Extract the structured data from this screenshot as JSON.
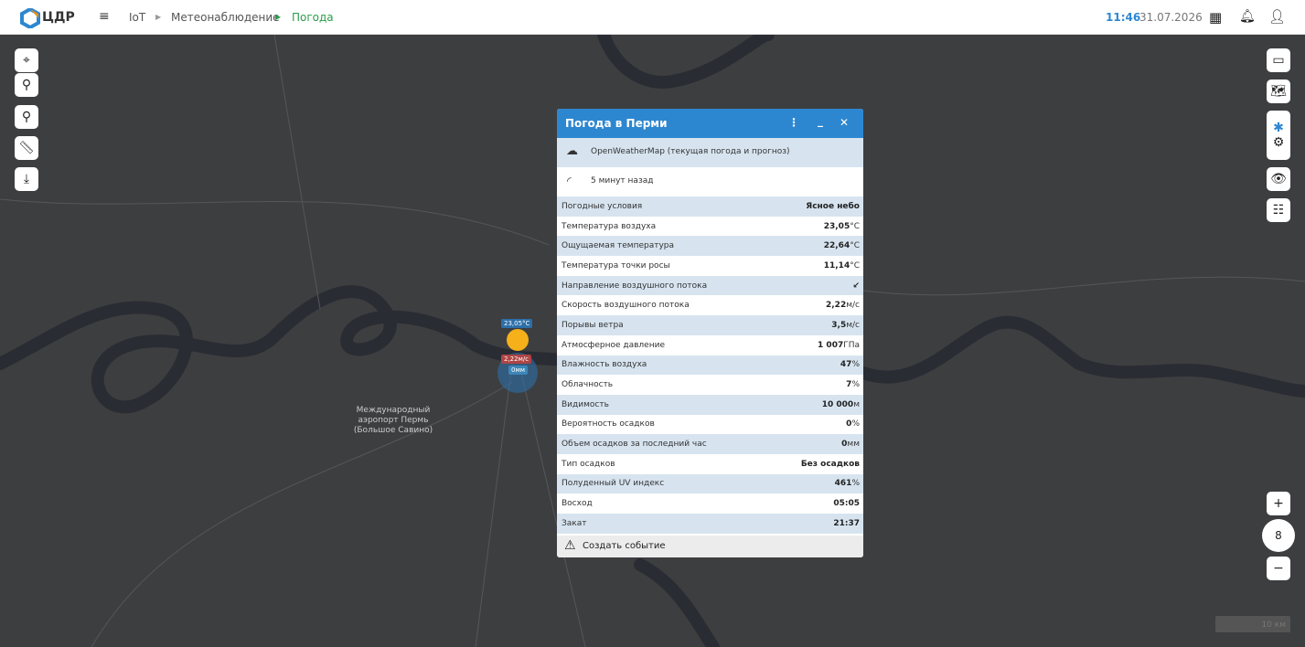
{
  "header": {
    "logo": "ЦДР",
    "breadcrumbs": [
      "IoT",
      "Метеонаблюдение",
      "Погода"
    ],
    "time": "11:46",
    "date": "31.07.2026"
  },
  "map": {
    "marker": {
      "temperature": "23,05°C",
      "wind": "2,22м/с",
      "precipitation": "0мм"
    },
    "airport_label": [
      "Международный",
      "аэропорт Пермь",
      "(Большое Савино)"
    ],
    "zoom": "8",
    "scale": "10 км"
  },
  "panel": {
    "title": "Погода в Перми",
    "source": "OpenWeatherMap (текущая погода и прогноз)",
    "updated": "5 минут назад",
    "rows": [
      {
        "label": "Погодные условия",
        "value": "Ясное небо"
      },
      {
        "label": "Температура воздуха",
        "value": "23,05",
        "unit": "°C"
      },
      {
        "label": "Ощущаемая температура",
        "value": "22,64",
        "unit": "°C"
      },
      {
        "label": "Температура точки росы",
        "value": "11,14",
        "unit": "°C"
      },
      {
        "label": "Направление воздушного потока",
        "value": "↙"
      },
      {
        "label": "Скорость воздушного потока",
        "value": "2,22",
        "unit": "м/с"
      },
      {
        "label": "Порывы ветра",
        "value": "3,5",
        "unit": "м/с"
      },
      {
        "label": "Атмосферное давление",
        "value": "1 007",
        "unit": "ГПа"
      },
      {
        "label": "Влажность воздуха",
        "value": "47",
        "unit": "%"
      },
      {
        "label": "Облачность",
        "value": "7",
        "unit": "%"
      },
      {
        "label": "Видимость",
        "value": "10 000",
        "unit": "м"
      },
      {
        "label": "Вероятность осадков",
        "value": "0",
        "unit": "%"
      },
      {
        "label": "Объем осадков за последний час",
        "value": "0",
        "unit": "мм"
      },
      {
        "label": "Тип осадков",
        "value": "Без осадков"
      },
      {
        "label": "Полуденный UV индекс",
        "value": "461",
        "unit": "%"
      },
      {
        "label": "Восход",
        "value": "05:05"
      },
      {
        "label": "Закат",
        "value": "21:37"
      }
    ],
    "action": "Создать событие"
  }
}
